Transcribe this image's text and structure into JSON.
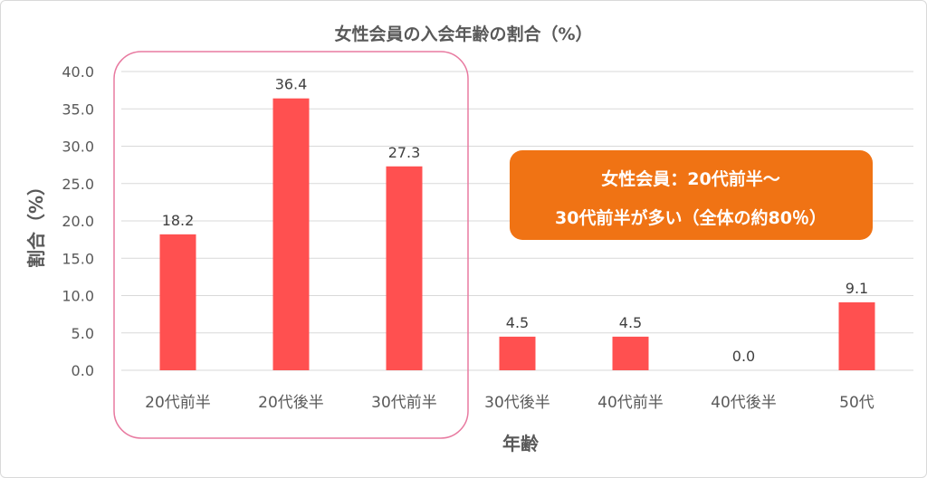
{
  "chart_data": {
    "type": "bar",
    "title": "女性会員の入会年齢の割合（%）",
    "xlabel": "年齢",
    "ylabel": "割合（%）",
    "categories": [
      "20代前半",
      "20代後半",
      "30代前半",
      "30代後半",
      "40代前半",
      "40代後半",
      "50代"
    ],
    "values": [
      18.2,
      36.4,
      27.3,
      4.5,
      4.5,
      0.0,
      9.1
    ],
    "data_labels": [
      "18.2",
      "36.4",
      "27.3",
      "4.5",
      "4.5",
      "0.0",
      "9.1"
    ],
    "ylim": [
      0,
      40
    ],
    "yticks": [
      "0.0",
      "5.0",
      "10.0",
      "15.0",
      "20.0",
      "25.0",
      "30.0",
      "35.0",
      "40.0"
    ],
    "grid": true,
    "bar_color": "#ff5050",
    "highlight": {
      "categories": [
        "20代前半",
        "20代後半",
        "30代前半"
      ],
      "border_color": "#e87aa0"
    },
    "annotation": {
      "lines": [
        "女性会員：20代前半〜",
        "30代前半が多い（全体の約80％）"
      ],
      "background": "#f07314",
      "text_color": "#ffffff"
    }
  }
}
